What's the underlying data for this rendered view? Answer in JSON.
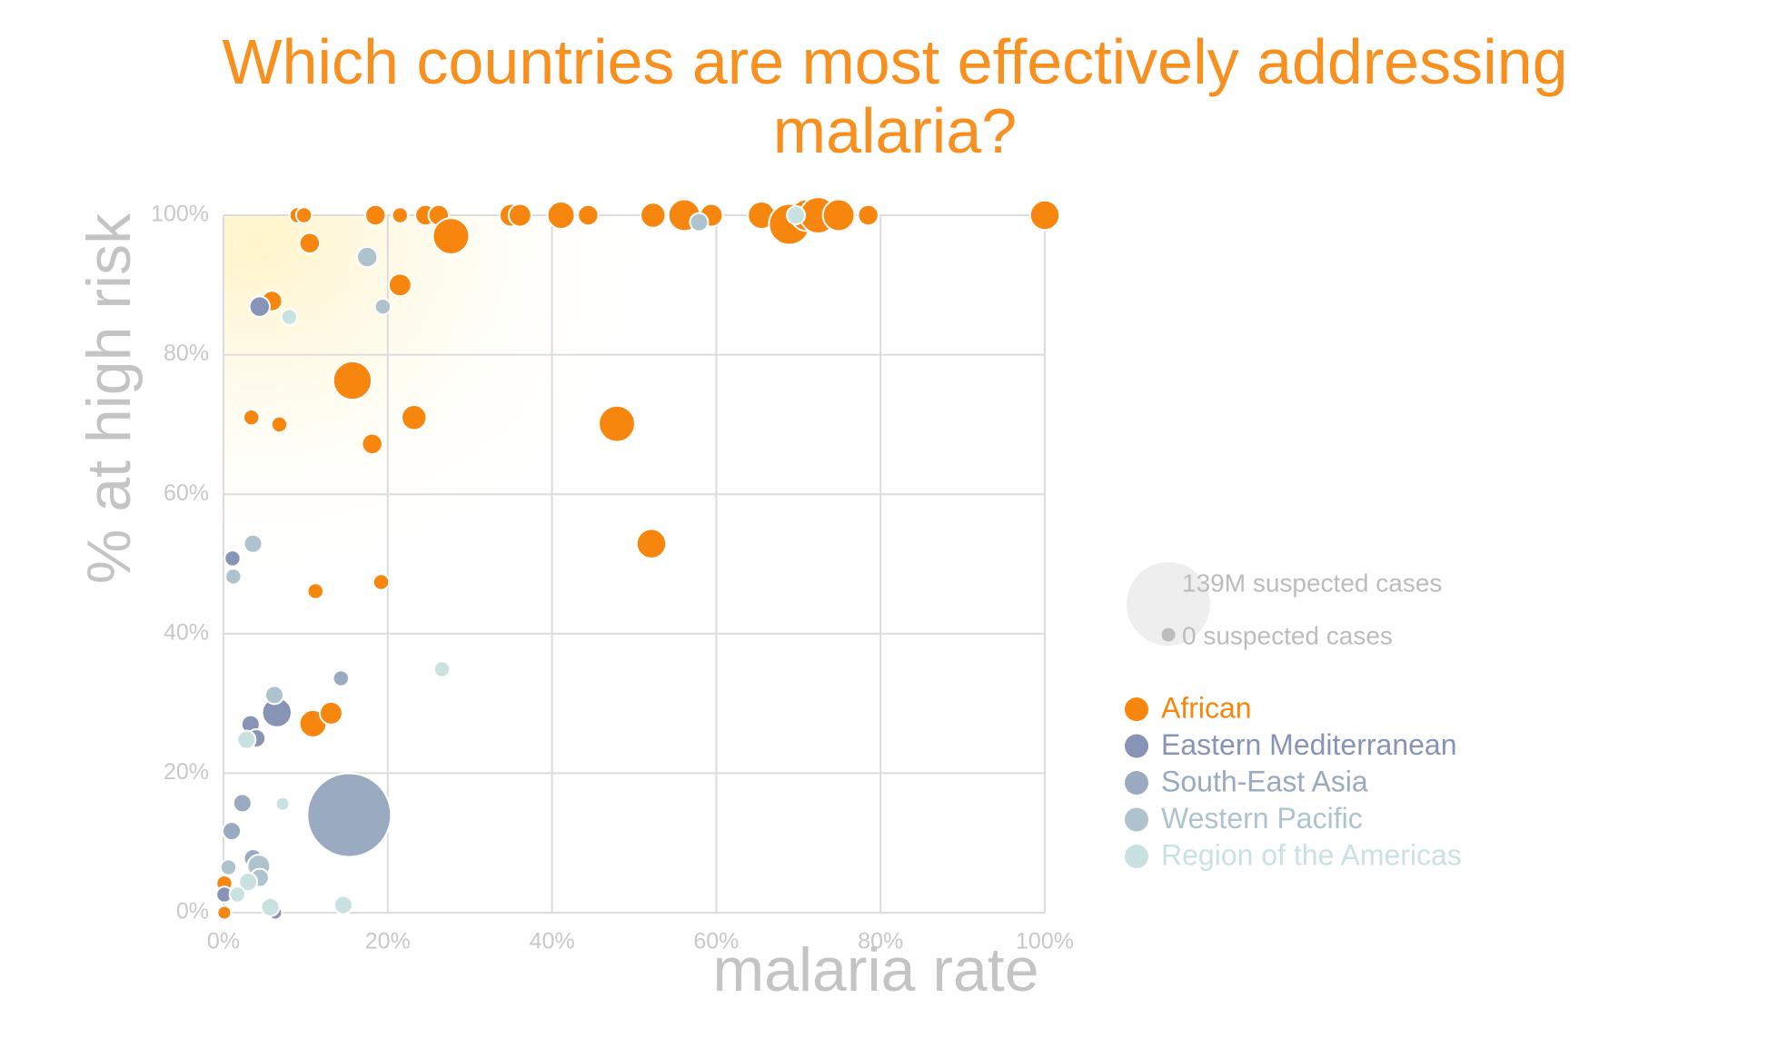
{
  "chart_data": {
    "type": "scatter",
    "title": "Which countries are most effectively addressing malaria?",
    "x_label": "malaria rate",
    "y_label": "% at high risk",
    "xlim": [
      0,
      100
    ],
    "ylim": [
      0,
      100
    ],
    "xticks": [
      {
        "value": 0,
        "label": "0%"
      },
      {
        "value": 20,
        "label": "20%"
      },
      {
        "value": 40,
        "label": "40%"
      },
      {
        "value": 60,
        "label": "60%"
      },
      {
        "value": 80,
        "label": "80%"
      },
      {
        "value": 100,
        "label": "100%"
      }
    ],
    "yticks": [
      {
        "value": 0,
        "label": "0%"
      },
      {
        "value": 20,
        "label": "20%"
      },
      {
        "value": 40,
        "label": "40%"
      },
      {
        "value": 60,
        "label": "60%"
      },
      {
        "value": 80,
        "label": "80%"
      },
      {
        "value": 100,
        "label": "100%"
      }
    ],
    "grid": true,
    "size_legend": [
      {
        "value": 139,
        "label": "139M suspected cases"
      },
      {
        "value": 0,
        "label": "0 suspected cases"
      }
    ],
    "series": [
      {
        "name": "African",
        "color": "#f7860f",
        "x": [
          9,
          9.8,
          18.5,
          21.5,
          24.6,
          26.2,
          27.7,
          10.5,
          21.5,
          5.9,
          15.7,
          3.4,
          6.8,
          23.2,
          18.1,
          47.9,
          52.1,
          11.2,
          19.2,
          10.9,
          13.1,
          0.1,
          0.1,
          35,
          36.1,
          41.1,
          44.4,
          52.3,
          56.1,
          59.4,
          65.5,
          68.9,
          71,
          72.4,
          74.9,
          78.5,
          100
        ],
        "values": [
          100,
          100,
          100,
          100,
          100,
          100,
          97,
          96,
          90,
          87.7,
          76.3,
          71,
          70,
          71,
          67.2,
          70.1,
          52.9,
          46.1,
          47.4,
          27.1,
          28.6,
          0,
          4.2,
          100,
          100,
          100,
          100,
          100,
          100,
          100,
          100,
          98.7,
          100,
          100,
          100,
          100,
          100
        ],
        "sizes": [
          0.14,
          0.14,
          1.3,
          0.14,
          1.3,
          1.3,
          14.5,
          1.3,
          2.3,
          1.3,
          17.5,
          0.14,
          0.14,
          3.6,
          1.3,
          14.5,
          7.1,
          0.14,
          0.14,
          5.2,
          2.3,
          0,
          0.14,
          2.3,
          2.3,
          5.2,
          1.3,
          3.6,
          9.3,
          2.3,
          5.2,
          21,
          9.3,
          14.5,
          9.3,
          1.3,
          7.1
        ]
      },
      {
        "name": "Eastern Mediterranean",
        "color": "#8794b6",
        "x": [
          4.4,
          1.1,
          6.5,
          3.3,
          4,
          6.3,
          0.1
        ],
        "values": [
          86.9,
          50.8,
          28.7,
          27,
          25,
          0,
          2.6
        ],
        "sizes": [
          1.3,
          0.14,
          7.1,
          0.6,
          0.6,
          0,
          0.14
        ]
      },
      {
        "name": "South-East Asia",
        "color": "#9aaac0",
        "x": [
          15.3,
          2.3,
          1,
          14.3,
          3.6
        ],
        "values": [
          14,
          15.7,
          11.7,
          33.6,
          7.8
        ],
        "sizes": [
          139,
          0.6,
          0.6,
          0.14,
          0.6
        ]
      },
      {
        "name": "Western Pacific",
        "color": "#aec3ce",
        "x": [
          17.5,
          19.4,
          1.2,
          3.6,
          6.2,
          4.3,
          0.6,
          57.9,
          4.4
        ],
        "values": [
          94,
          86.9,
          48.2,
          52.9,
          31.2,
          6.7,
          6.5,
          99,
          5
        ],
        "sizes": [
          1.3,
          0.14,
          0.14,
          0.6,
          0.6,
          2.3,
          0.14,
          0.6,
          0.6
        ]
      },
      {
        "name": "Region of the Americas",
        "color": "#cae1e1",
        "x": [
          8,
          26.6,
          2.8,
          7.2,
          3,
          1.7,
          5.7,
          14.6,
          69.7
        ],
        "values": [
          85.4,
          34.9,
          24.8,
          15.6,
          4.4,
          2.6,
          0.8,
          1.1,
          100
        ],
        "sizes": [
          0.14,
          0.14,
          0.6,
          0,
          0.6,
          0.14,
          0.6,
          0.6,
          0.6
        ]
      }
    ]
  }
}
